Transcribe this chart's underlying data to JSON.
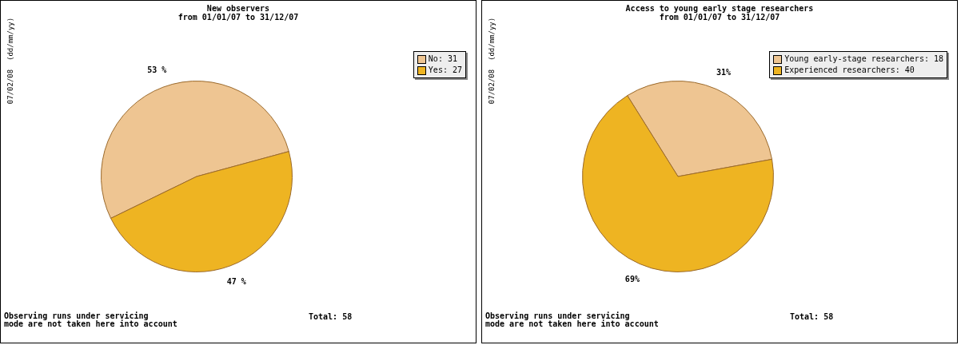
{
  "chart_data": [
    {
      "type": "pie",
      "title": "New observers",
      "subtitle": "from 01/01/07 to 31/12/07",
      "categories": [
        "No: 31",
        "Yes: 27"
      ],
      "values": [
        53,
        47
      ],
      "colors": [
        "#eec592",
        "#eeb422"
      ],
      "value_labels": [
        "53 %",
        "47 %"
      ],
      "legend": "top right",
      "annotations": [
        "07/02/08  (dd/mm/yy)",
        "Observing runs under servicing\nmode are not taken here into account",
        "Total: 58"
      ]
    },
    {
      "type": "pie",
      "title": "Access to young early stage researchers",
      "subtitle": "from 01/01/07 to 31/12/07",
      "categories": [
        "Young early-stage researchers: 18",
        "Experienced researchers: 40"
      ],
      "values": [
        31,
        69
      ],
      "colors": [
        "#eec592",
        "#eeb422"
      ],
      "value_labels": [
        "31%",
        "69%"
      ],
      "legend": "top right",
      "annotations": [
        "07/02/08  (dd/mm/yy)",
        "Observing runs under servicing\nmode are not taken here into account",
        "Total: 58"
      ]
    }
  ]
}
